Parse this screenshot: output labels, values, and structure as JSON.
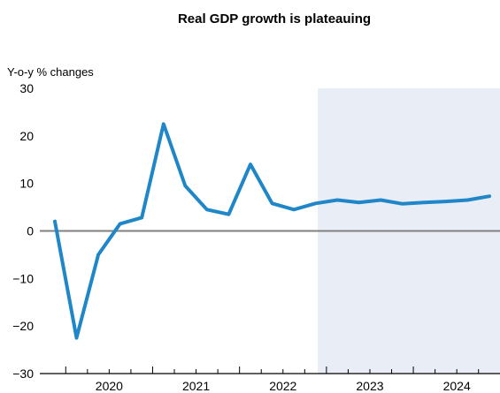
{
  "chart_data": {
    "type": "line",
    "title": "Real GDP growth is plateauing",
    "ylabel": "Y-o-y % changes",
    "xlabel": "",
    "ylim": [
      -30,
      30
    ],
    "yticks": [
      30,
      20,
      10,
      0,
      -10,
      -20,
      -30
    ],
    "ytick_labels": [
      "30",
      "20",
      "10",
      "0",
      "−10",
      "−20",
      "−30"
    ],
    "year_labels": [
      "2020",
      "2021",
      "2022",
      "2023",
      "2024"
    ],
    "x": [
      "2019-Q4",
      "2020-Q1",
      "2020-Q2",
      "2020-Q3",
      "2020-Q4",
      "2021-Q1",
      "2021-Q2",
      "2021-Q3",
      "2021-Q4",
      "2022-Q1",
      "2022-Q2",
      "2022-Q3",
      "2022-Q4",
      "2023-Q1",
      "2023-Q2",
      "2023-Q3",
      "2023-Q4",
      "2024-Q1",
      "2024-Q2",
      "2024-Q3",
      "2024-Q4"
    ],
    "series": [
      {
        "values": [
          2.0,
          -22.5,
          -5.0,
          1.5,
          2.8,
          22.5,
          9.5,
          4.5,
          3.5,
          14.0,
          5.8,
          4.5,
          5.8,
          6.5,
          6.0,
          6.5,
          5.7,
          6.0,
          6.2,
          6.5,
          7.3
        ],
        "color": "#1f86c8"
      }
    ],
    "forecast_start": "2023-Q1",
    "shade_color": "#e9edf5",
    "grid": false
  }
}
